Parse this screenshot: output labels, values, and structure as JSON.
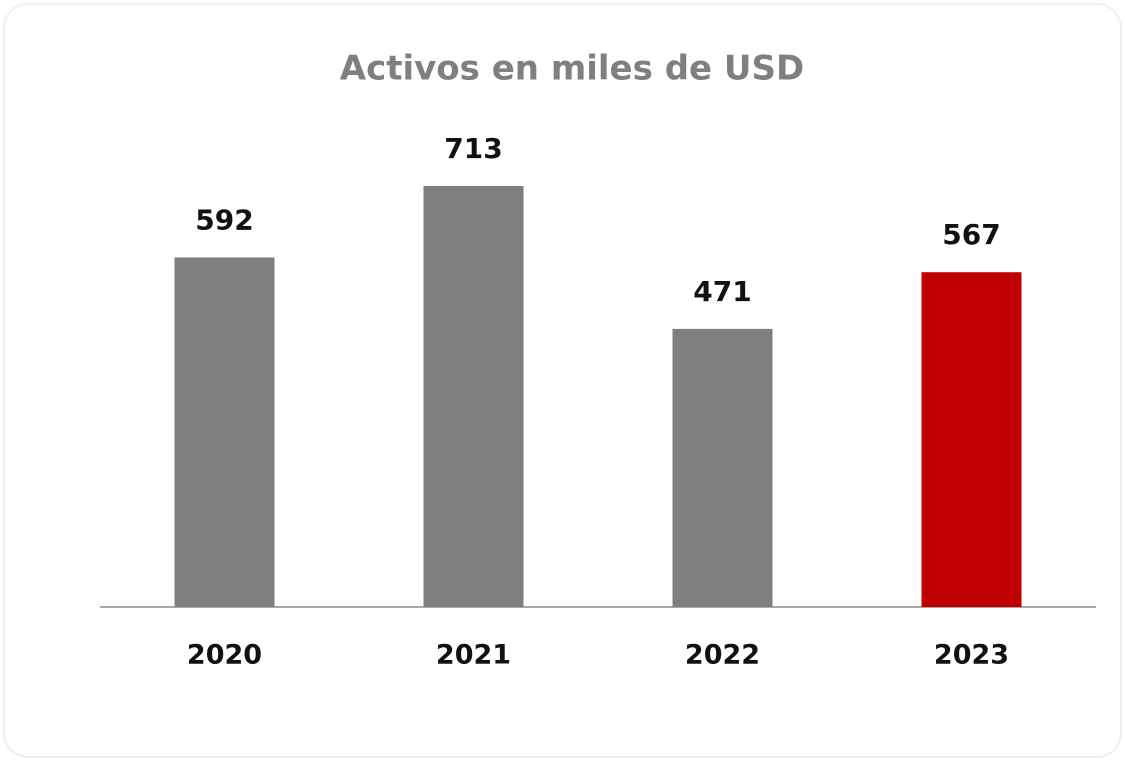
{
  "chart_data": {
    "type": "bar",
    "title": "Activos en miles de USD",
    "categories": [
      "2020",
      "2021",
      "2022",
      "2023"
    ],
    "values": [
      592,
      713,
      471,
      567
    ],
    "colors": [
      "#7f7f7f",
      "#7f7f7f",
      "#7f7f7f",
      "#c00000"
    ],
    "data_labels": true
  }
}
